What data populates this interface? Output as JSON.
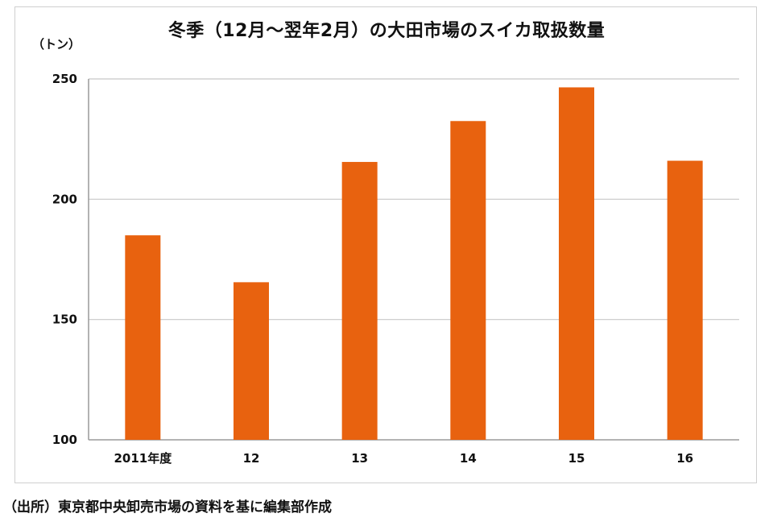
{
  "chart_data": {
    "type": "bar",
    "title": "冬季（12月～翌年2月）の大田市場のスイカ取扱数量",
    "ylabel": "（トン）",
    "categories": [
      "2011年度",
      "12",
      "13",
      "14",
      "15",
      "16"
    ],
    "values": [
      185,
      165.5,
      215.5,
      232.5,
      246.5,
      216
    ],
    "ylim": [
      100,
      250
    ],
    "yticks": [
      100,
      150,
      200,
      250
    ],
    "grid": true,
    "bar_color": "#e8620f",
    "source": "（出所）東京都中央卸売市場の資料を基に編集部作成"
  }
}
